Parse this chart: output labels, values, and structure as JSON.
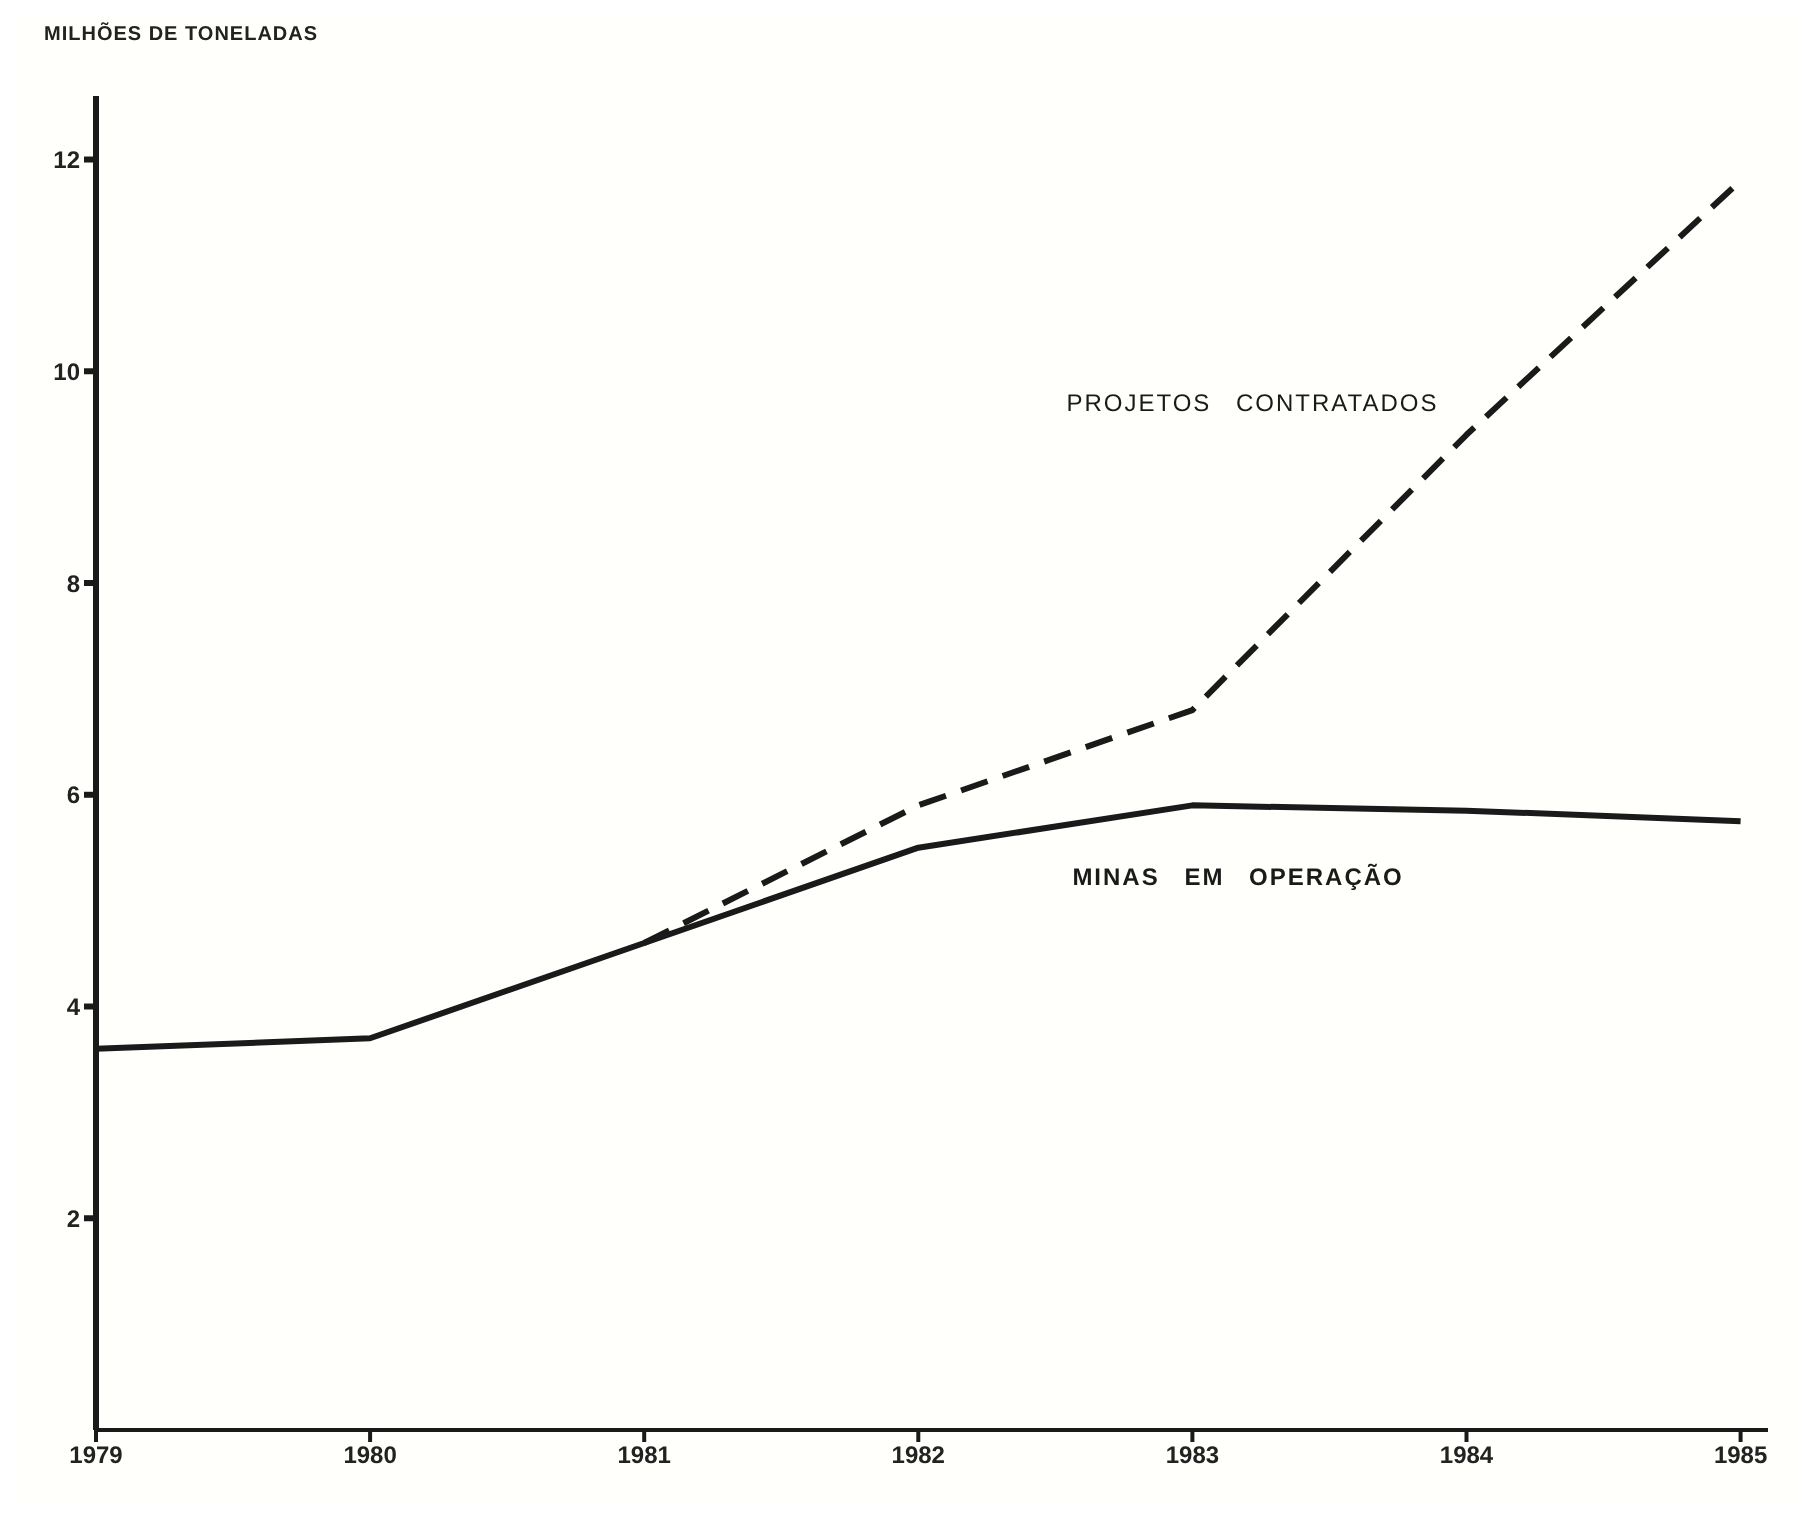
{
  "chart_data": {
    "type": "line",
    "ylabel": "MILHÕES DE TONELADAS",
    "x": [
      1979,
      1980,
      1981,
      1982,
      1983,
      1984,
      1985
    ],
    "series": [
      {
        "name": "PROJETOS CONTRATADOS",
        "color": "#1a1a1a",
        "line_style": "dashed",
        "values": [
          null,
          null,
          4.6,
          5.9,
          6.8,
          9.4,
          11.8
        ]
      },
      {
        "name": "MINAS EM OPERAÇÃO",
        "color": "#1a1a1a",
        "line_style": "solid",
        "values": [
          3.6,
          3.7,
          4.6,
          5.5,
          5.9,
          5.85,
          5.75
        ]
      }
    ],
    "xlim": [
      1979,
      1985.1
    ],
    "xticks": [
      1979,
      1980,
      1981,
      1982,
      1983,
      1984,
      1985
    ],
    "ylim": [
      0,
      12.6
    ],
    "yticks": [
      2,
      4,
      6,
      8,
      10,
      12
    ],
    "marker": "none",
    "grid": false,
    "legend": false
  }
}
